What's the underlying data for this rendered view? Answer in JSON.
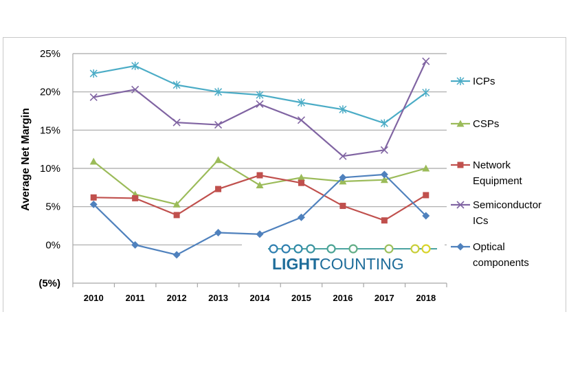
{
  "chart_data": {
    "type": "line",
    "ylabel": "Average  Net  Margin",
    "xlabel": "",
    "categories": [
      "2010",
      "2011",
      "2012",
      "2013",
      "2014",
      "2015",
      "2016",
      "2017",
      "2018"
    ],
    "y_ticks": [
      {
        "value": 25,
        "label": "25%"
      },
      {
        "value": 20,
        "label": "20%"
      },
      {
        "value": 15,
        "label": "15%"
      },
      {
        "value": 10,
        "label": "10%"
      },
      {
        "value": 5,
        "label": "5%"
      },
      {
        "value": 0,
        "label": "0%"
      },
      {
        "value": -5,
        "label": "(5%)"
      }
    ],
    "ylim": [
      -5,
      25
    ],
    "grid": true,
    "legend_position": "right",
    "series": [
      {
        "name": "ICPs",
        "color": "#4bacc6",
        "marker": "asterisk",
        "values": [
          22.4,
          23.4,
          20.9,
          20.0,
          19.6,
          18.6,
          17.7,
          15.9,
          19.9
        ]
      },
      {
        "name": "CSPs",
        "color": "#9bbb59",
        "marker": "triangle",
        "values": [
          10.9,
          6.6,
          5.3,
          11.1,
          7.8,
          8.8,
          8.3,
          8.5,
          10.0
        ]
      },
      {
        "name": "Network Equipment",
        "legend_lines": [
          "Network",
          "Equipment"
        ],
        "color": "#c0504d",
        "marker": "square",
        "values": [
          6.2,
          6.1,
          3.9,
          7.3,
          9.1,
          8.1,
          5.1,
          3.2,
          6.5
        ]
      },
      {
        "name": "Semiconductor ICs",
        "legend_lines": [
          "Semiconductor",
          "ICs"
        ],
        "color": "#8064a2",
        "marker": "cross",
        "values": [
          19.3,
          20.3,
          16.0,
          15.7,
          18.4,
          16.3,
          11.6,
          12.4,
          24.0
        ]
      },
      {
        "name": "Optical components",
        "legend_lines": [
          "Optical",
          "components"
        ],
        "color": "#4f81bd",
        "marker": "diamond",
        "values": [
          5.3,
          0.0,
          -1.3,
          1.6,
          1.4,
          3.6,
          8.8,
          9.2,
          3.8
        ]
      }
    ],
    "negative_tick_color": "#c00000"
  },
  "logo": {
    "text_bold": "LIGHT",
    "text_regular": "COUNTING"
  }
}
